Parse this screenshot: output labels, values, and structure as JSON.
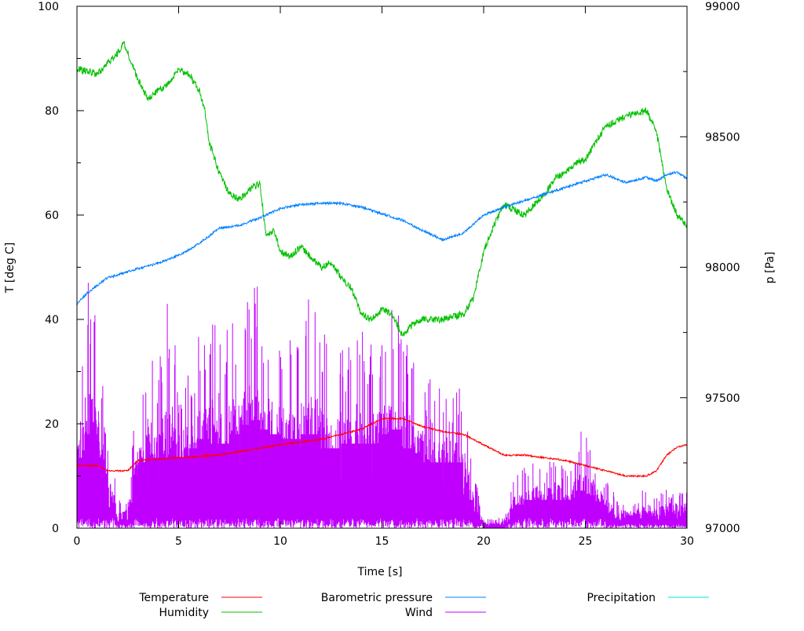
{
  "chart_data": {
    "type": "line",
    "title": "",
    "xlabel": "Time [s]",
    "ylabel": "T [deg C]",
    "y2label": "p [Pa]",
    "xlim": [
      0,
      30
    ],
    "ylim": [
      0,
      100
    ],
    "y2lim": [
      97000,
      99000
    ],
    "x_ticks": [
      0,
      5,
      10,
      15,
      20,
      25,
      30
    ],
    "y_ticks": [
      0,
      20,
      40,
      60,
      80,
      100
    ],
    "y2_ticks": [
      97000,
      97500,
      98000,
      98500,
      99000
    ],
    "grid": false,
    "legend_position": "bottom",
    "series": [
      {
        "name": "Temperature",
        "axis": "left",
        "color": "#ff0000",
        "points": [
          [
            0,
            12
          ],
          [
            1,
            12
          ],
          [
            1.5,
            11
          ],
          [
            2,
            11
          ],
          [
            2.5,
            11
          ],
          [
            3,
            13
          ],
          [
            5,
            13.5
          ],
          [
            7,
            14
          ],
          [
            10,
            16
          ],
          [
            12,
            17
          ],
          [
            13,
            18
          ],
          [
            14,
            19
          ],
          [
            15,
            21
          ],
          [
            16,
            21
          ],
          [
            17,
            19.5
          ],
          [
            18,
            18.5
          ],
          [
            19,
            18
          ],
          [
            20,
            16
          ],
          [
            21,
            14
          ],
          [
            22,
            14
          ],
          [
            23,
            13.5
          ],
          [
            24,
            13
          ],
          [
            25,
            12
          ],
          [
            26,
            11
          ],
          [
            27,
            10
          ],
          [
            28,
            10
          ],
          [
            28.5,
            11
          ],
          [
            29,
            14
          ],
          [
            29.5,
            15.5
          ],
          [
            30,
            16
          ],
          [
            30,
            100
          ],
          [
            30,
            0
          ]
        ]
      },
      {
        "name": "Humidity",
        "axis": "left",
        "color": "#00c000",
        "points": [
          [
            0,
            88
          ],
          [
            1,
            87
          ],
          [
            2,
            91
          ],
          [
            2.3,
            93
          ],
          [
            3,
            86
          ],
          [
            3.5,
            82
          ],
          [
            4,
            84
          ],
          [
            4.5,
            85
          ],
          [
            5,
            88
          ],
          [
            5.5,
            87
          ],
          [
            6,
            84
          ],
          [
            6.3,
            80
          ],
          [
            6.5,
            74
          ],
          [
            7,
            68
          ],
          [
            7.5,
            64
          ],
          [
            8,
            63
          ],
          [
            8.5,
            65
          ],
          [
            9,
            66
          ],
          [
            9.3,
            56
          ],
          [
            9.7,
            57
          ],
          [
            10,
            53
          ],
          [
            10.5,
            52
          ],
          [
            11,
            54
          ],
          [
            11.5,
            52
          ],
          [
            12,
            50
          ],
          [
            12.5,
            51
          ],
          [
            13,
            48
          ],
          [
            13.5,
            46
          ],
          [
            14,
            41
          ],
          [
            14.5,
            40
          ],
          [
            15,
            42
          ],
          [
            15.5,
            41
          ],
          [
            16,
            37
          ],
          [
            16.5,
            39
          ],
          [
            17,
            40
          ],
          [
            18,
            40
          ],
          [
            19,
            41
          ],
          [
            19.5,
            44
          ],
          [
            20,
            53
          ],
          [
            20.5,
            58
          ],
          [
            21,
            62
          ],
          [
            21.5,
            61
          ],
          [
            22,
            60
          ],
          [
            22.5,
            62
          ],
          [
            23,
            64
          ],
          [
            23.5,
            67
          ],
          [
            24,
            68
          ],
          [
            24.5,
            70
          ],
          [
            25,
            70.5
          ],
          [
            25.5,
            74
          ],
          [
            26,
            77
          ],
          [
            26.5,
            78
          ],
          [
            27,
            79
          ],
          [
            27.5,
            79.5
          ],
          [
            28,
            80
          ],
          [
            28.5,
            76
          ],
          [
            29,
            65
          ],
          [
            29.5,
            60
          ],
          [
            30,
            58
          ]
        ]
      },
      {
        "name": "Barometric pressure",
        "axis": "right",
        "color": "#0080ff",
        "points": [
          [
            0,
            97860
          ],
          [
            0.5,
            97900
          ],
          [
            1,
            97930
          ],
          [
            1.5,
            97960
          ],
          [
            2,
            97970
          ],
          [
            3,
            97995
          ],
          [
            4,
            98015
          ],
          [
            5,
            98045
          ],
          [
            6,
            98090
          ],
          [
            7,
            98150
          ],
          [
            8,
            98160
          ],
          [
            9,
            98190
          ],
          [
            10,
            98225
          ],
          [
            11,
            98240
          ],
          [
            12,
            98245
          ],
          [
            13,
            98245
          ],
          [
            14,
            98230
          ],
          [
            15,
            98205
          ],
          [
            16,
            98180
          ],
          [
            17,
            98140
          ],
          [
            18,
            98105
          ],
          [
            19,
            98130
          ],
          [
            20,
            98200
          ],
          [
            21,
            98230
          ],
          [
            22,
            98255
          ],
          [
            23,
            98280
          ],
          [
            24,
            98305
          ],
          [
            25,
            98330
          ],
          [
            26,
            98355
          ],
          [
            26.5,
            98340
          ],
          [
            27,
            98325
          ],
          [
            28,
            98345
          ],
          [
            28.5,
            98330
          ],
          [
            29,
            98355
          ],
          [
            29.5,
            98365
          ],
          [
            30,
            98340
          ]
        ]
      },
      {
        "name": "Wind",
        "axis": "left",
        "color": "#c000ff",
        "style": "impulses",
        "x": [
          0,
          0.5,
          1,
          1.5,
          2,
          2.5,
          3,
          3.5,
          4,
          4.5,
          5,
          5.5,
          6,
          6.5,
          7,
          7.5,
          8,
          8.5,
          9,
          9.5,
          10,
          10.5,
          11,
          11.5,
          12,
          12.5,
          13,
          13.5,
          14,
          14.5,
          15,
          15.5,
          16,
          16.5,
          17,
          17.5,
          18,
          18.5,
          19,
          19.5,
          20,
          20.5,
          21,
          21.5,
          22,
          22.5,
          23,
          23.5,
          24,
          24.5,
          25,
          25.5,
          26,
          26.5,
          27,
          27.5,
          28,
          28.5,
          29,
          29.5,
          30
        ],
        "values": [
          30,
          48,
          40,
          20,
          6,
          6,
          28,
          36,
          30,
          46,
          30,
          34,
          38,
          44,
          36,
          40,
          44,
          48,
          46,
          42,
          40,
          38,
          40,
          46,
          40,
          34,
          38,
          36,
          44,
          36,
          40,
          42,
          42,
          34,
          32,
          28,
          30,
          28,
          28,
          12,
          2,
          2,
          2,
          10,
          12,
          14,
          12,
          16,
          12,
          16,
          22,
          14,
          10,
          6,
          6,
          6,
          8,
          6,
          8,
          8,
          8
        ]
      },
      {
        "name": "Precipitation",
        "axis": "left",
        "color": "#00e0e0",
        "points": []
      }
    ]
  }
}
